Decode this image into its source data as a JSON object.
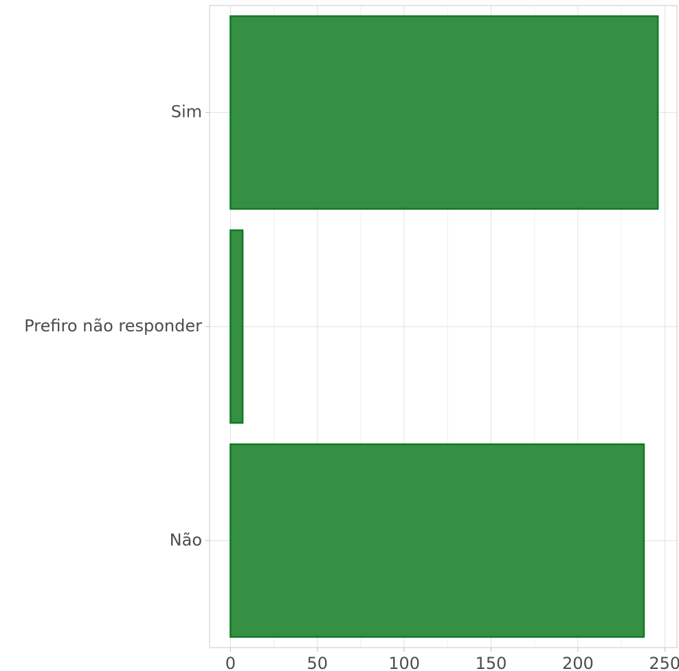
{
  "chart_data": {
    "type": "bar",
    "orientation": "horizontal",
    "categories": [
      "Sim",
      "Prefiro não responder",
      "Não"
    ],
    "values": [
      246,
      7,
      238
    ],
    "xlim": [
      -12,
      257
    ],
    "xticks": [
      0,
      50,
      100,
      150,
      200,
      250
    ],
    "xtick_labels": [
      "0",
      "50",
      "100",
      "150",
      "200",
      "250"
    ],
    "title": "",
    "xlabel": "",
    "ylabel": "",
    "grid": true,
    "legend": "none",
    "colors": {
      "bar_fill": "#2a8a3a",
      "bar_stroke": "#0f7a24"
    }
  }
}
